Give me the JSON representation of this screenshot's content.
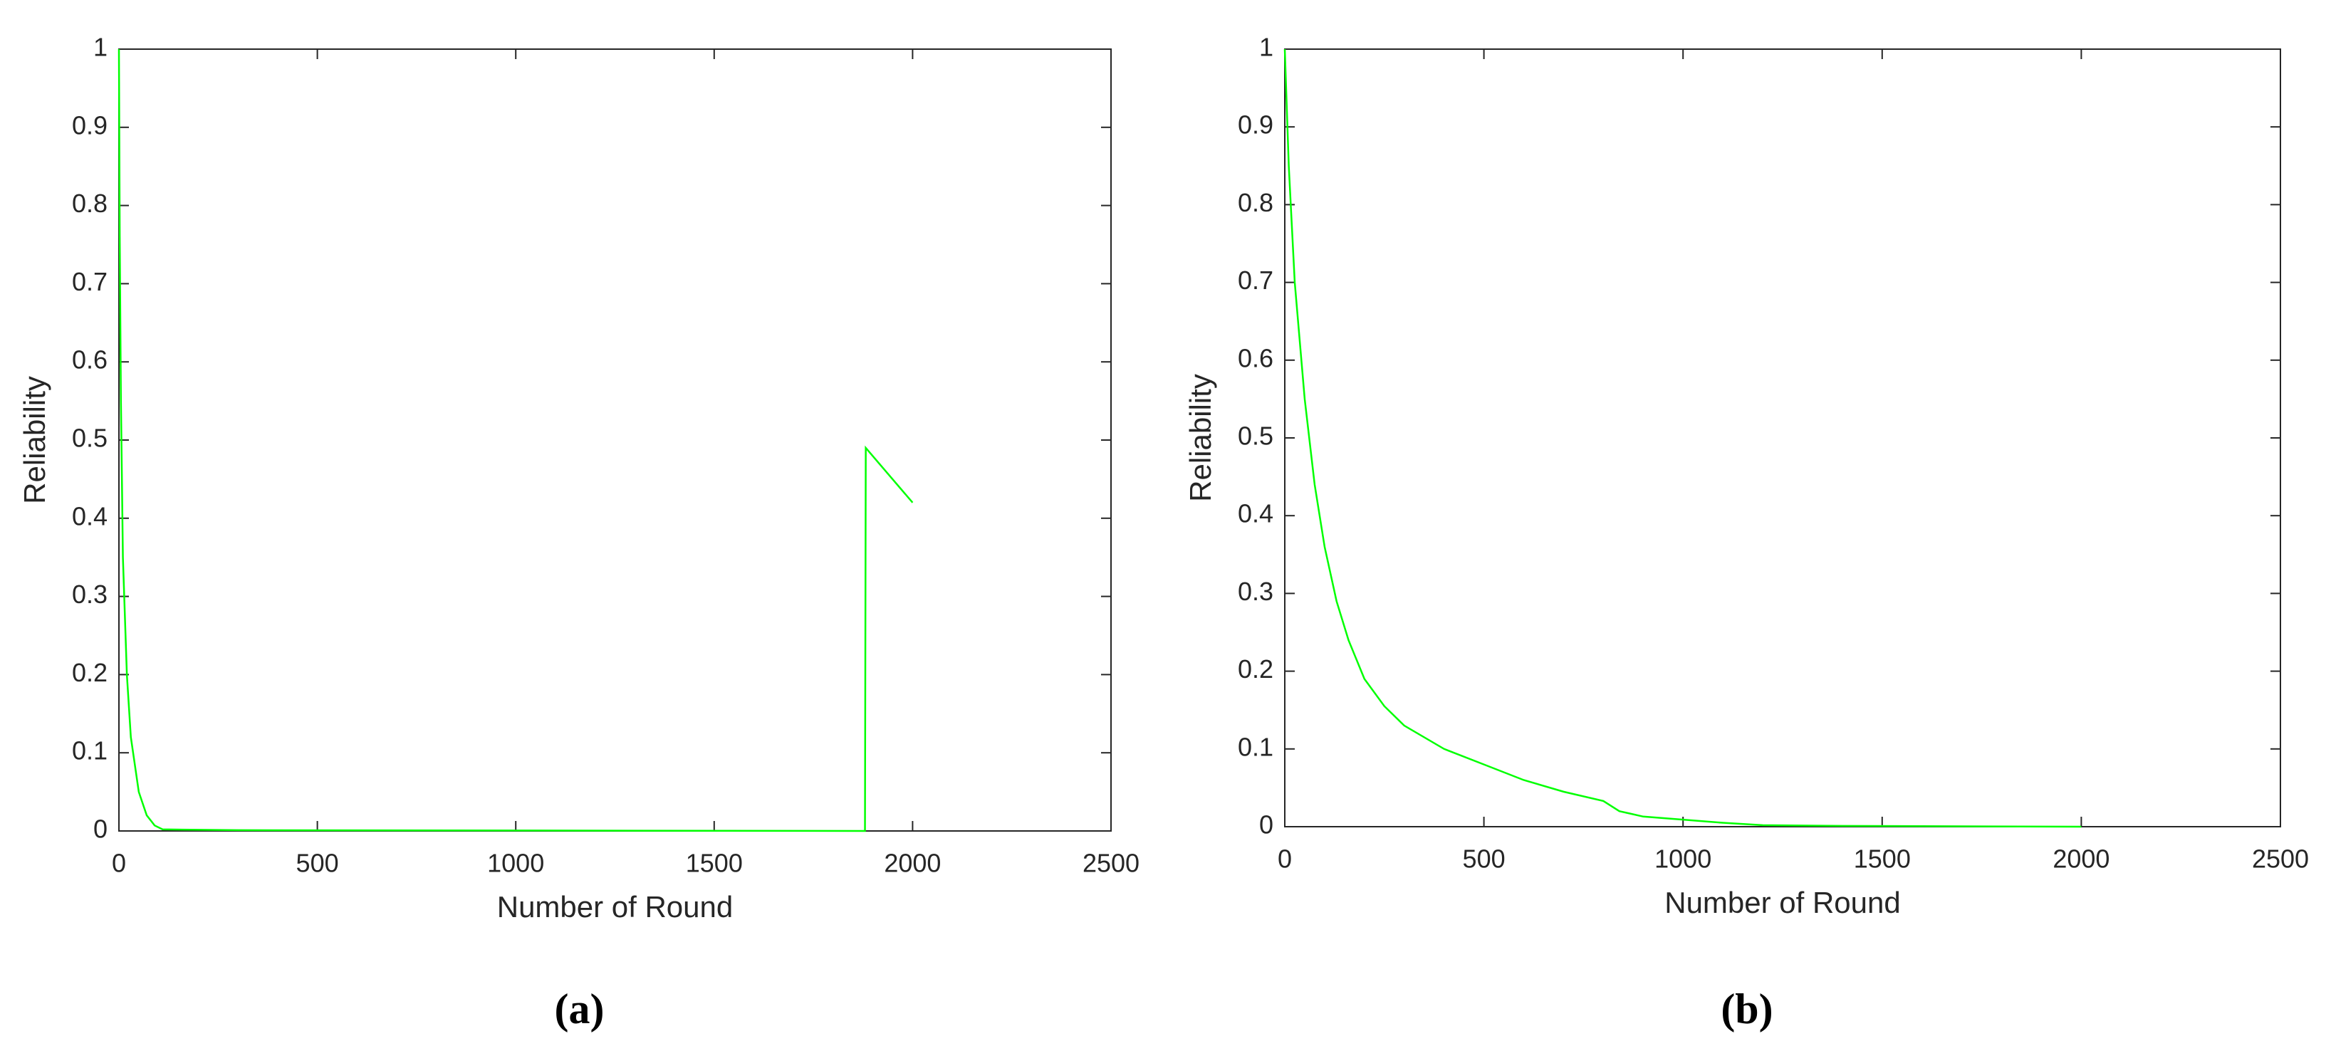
{
  "chart_data": [
    {
      "type": "line",
      "caption": "(a)",
      "xlabel": "Number of Round",
      "ylabel": "Reliability",
      "xlim": [
        0,
        2500
      ],
      "xticks": [
        0,
        500,
        1000,
        1500,
        2000,
        2500
      ],
      "ylim": [
        0,
        1
      ],
      "yticks": [
        0,
        0.1,
        0.2,
        0.3,
        0.4,
        0.5,
        0.6,
        0.7,
        0.8,
        0.9,
        1
      ],
      "color": "#00ff00",
      "x": [
        0,
        2,
        5,
        10,
        20,
        30,
        50,
        70,
        90,
        110,
        300,
        1880,
        1882,
        2000
      ],
      "values": [
        1,
        0.76,
        0.55,
        0.35,
        0.2,
        0.12,
        0.05,
        0.02,
        0.007,
        0.002,
        0.001,
        0,
        0.49,
        0.42
      ]
    },
    {
      "type": "line",
      "caption": "(b)",
      "xlabel": "Number of Round",
      "ylabel": "Reliability",
      "xlim": [
        0,
        2500
      ],
      "xticks": [
        0,
        500,
        1000,
        1500,
        2000,
        2500
      ],
      "ylim": [
        0,
        1
      ],
      "yticks": [
        0,
        0.1,
        0.2,
        0.3,
        0.4,
        0.5,
        0.6,
        0.7,
        0.8,
        0.9,
        1
      ],
      "color": "#00ff00",
      "x": [
        0,
        10,
        25,
        50,
        75,
        100,
        130,
        160,
        200,
        250,
        300,
        400,
        500,
        600,
        700,
        800,
        840,
        900,
        1000,
        1100,
        1200,
        1400,
        2000
      ],
      "values": [
        1,
        0.85,
        0.7,
        0.55,
        0.44,
        0.36,
        0.29,
        0.24,
        0.19,
        0.155,
        0.13,
        0.1,
        0.08,
        0.06,
        0.045,
        0.033,
        0.02,
        0.013,
        0.009,
        0.005,
        0.002,
        0.001,
        0
      ]
    }
  ]
}
